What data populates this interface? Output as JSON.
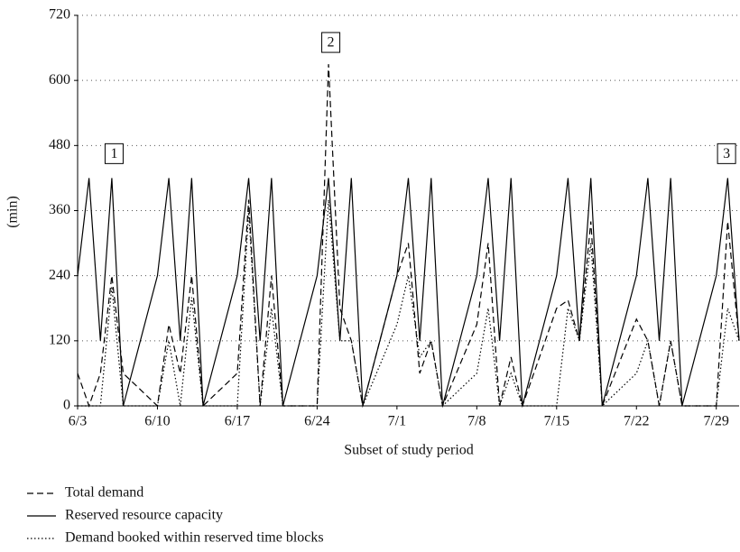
{
  "chart_data": {
    "type": "line",
    "y_label": "(min)",
    "x_label": "Subset of study period",
    "x": [
      0,
      1,
      2,
      3,
      4,
      7,
      8,
      9,
      10,
      11,
      14,
      15,
      16,
      17,
      18,
      21,
      22,
      23,
      24,
      25,
      28,
      29,
      30,
      31,
      32,
      35,
      36,
      37,
      38,
      39,
      42,
      43,
      44,
      45,
      46,
      49,
      50,
      51,
      52,
      53,
      56,
      57,
      58
    ],
    "series": [
      {
        "name": "Total demand",
        "color": "#000000",
        "style": "dashed",
        "values": [
          60,
          0,
          60,
          240,
          60,
          0,
          150,
          60,
          240,
          0,
          60,
          380,
          0,
          240,
          0,
          0,
          630,
          180,
          120,
          0,
          240,
          300,
          60,
          120,
          0,
          150,
          300,
          0,
          90,
          0,
          180,
          195,
          120,
          340,
          0,
          160,
          120,
          0,
          120,
          0,
          0,
          340,
          120
        ]
      },
      {
        "name": "Reserved resource capacity",
        "color": "#000000",
        "style": "solid",
        "values": [
          240,
          420,
          120,
          420,
          0,
          240,
          420,
          120,
          420,
          0,
          240,
          420,
          120,
          420,
          0,
          240,
          420,
          120,
          420,
          0,
          240,
          420,
          120,
          420,
          0,
          240,
          420,
          120,
          420,
          0,
          240,
          420,
          120,
          420,
          0,
          240,
          420,
          120,
          420,
          0,
          240,
          420,
          120
        ]
      },
      {
        "name": "Demand booked within reserved time blocks",
        "color": "#000000",
        "style": "dotted",
        "values": [
          0,
          0,
          0,
          220,
          0,
          0,
          120,
          0,
          200,
          0,
          0,
          360,
          0,
          180,
          0,
          0,
          380,
          120,
          120,
          0,
          150,
          240,
          90,
          120,
          0,
          60,
          180,
          0,
          60,
          0,
          0,
          180,
          120,
          300,
          0,
          60,
          120,
          0,
          120,
          0,
          0,
          180,
          120
        ]
      }
    ],
    "xlim": [
      0,
      58
    ],
    "xticks": [
      {
        "value": 0,
        "label": "6/3"
      },
      {
        "value": 7,
        "label": "6/10"
      },
      {
        "value": 14,
        "label": "6/17"
      },
      {
        "value": 21,
        "label": "6/24"
      },
      {
        "value": 28,
        "label": "7/1"
      },
      {
        "value": 35,
        "label": "7/8"
      },
      {
        "value": 42,
        "label": "7/15"
      },
      {
        "value": 49,
        "label": "7/22"
      },
      {
        "value": 56,
        "label": "7/29"
      }
    ],
    "ylim": [
      0,
      720
    ],
    "yticks": [
      0,
      120,
      240,
      360,
      480,
      600,
      720
    ],
    "grid": true,
    "legend": "bottom-left",
    "annotations": [
      {
        "text": "1",
        "x": 3.2,
        "y": 465
      },
      {
        "text": "2",
        "x": 22.2,
        "y": 670
      },
      {
        "text": "3",
        "x": 56.9,
        "y": 465
      }
    ]
  }
}
